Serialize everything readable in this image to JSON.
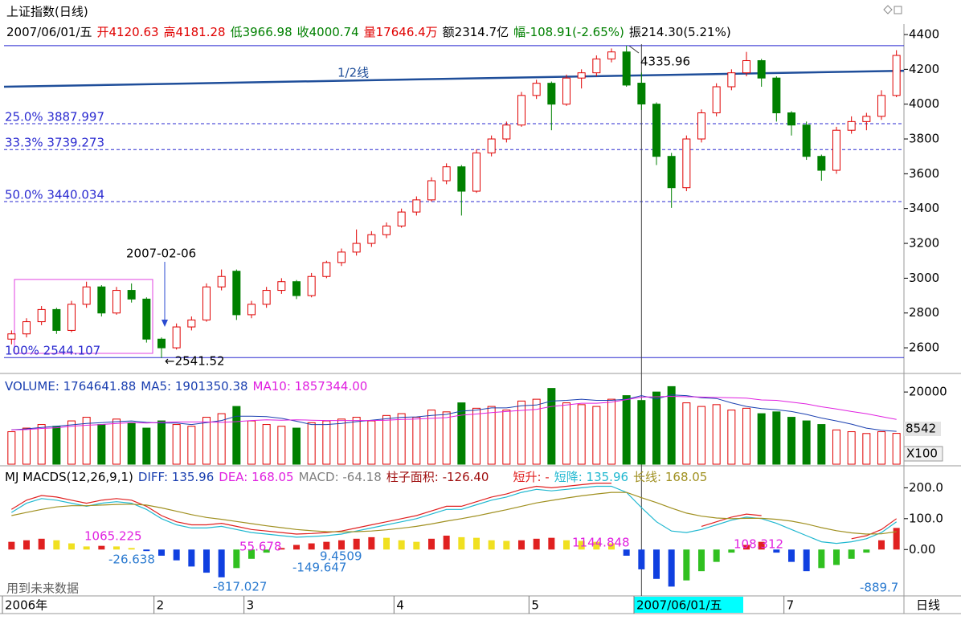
{
  "header": {
    "title": "上证指数(日线)",
    "quote": [
      {
        "text": "2007/06/01/五",
        "color": "#000000"
      },
      {
        "text": "开4120.63",
        "color": "#e00000"
      },
      {
        "text": "高4181.28",
        "color": "#e00000"
      },
      {
        "text": "低3966.98",
        "color": "#008000"
      },
      {
        "text": "收4000.74",
        "color": "#008000"
      },
      {
        "text": "量17646.4万",
        "color": "#e00000"
      },
      {
        "text": "额2314.7亿",
        "color": "#000000"
      },
      {
        "text": "幅-108.91(-2.65%)",
        "color": "#008000"
      },
      {
        "text": "振214.30(5.21%)",
        "color": "#000000"
      }
    ],
    "period": "日线"
  },
  "chart_data": [
    {
      "type": "candlestick",
      "categories": [
        "2006年",
        null,
        null,
        null,
        null,
        null,
        null,
        null,
        null,
        null,
        "2",
        null,
        null,
        null,
        null,
        null,
        "3",
        null,
        null,
        null,
        null,
        null,
        null,
        null,
        null,
        null,
        "4",
        null,
        null,
        null,
        null,
        null,
        null,
        null,
        null,
        "5",
        null,
        null,
        null,
        null,
        null,
        null,
        "2007/06/01/五",
        null,
        null,
        null,
        null,
        null,
        null,
        null,
        null,
        null,
        "7",
        null,
        null,
        null,
        null,
        null,
        null,
        null
      ],
      "open": [
        2650,
        2680,
        2750,
        2820,
        2700,
        2850,
        2950,
        2800,
        2930,
        2880,
        2650,
        2600,
        2720,
        2760,
        2950,
        3040,
        2790,
        2850,
        2930,
        2980,
        2900,
        3010,
        3090,
        3150,
        3200,
        3250,
        3300,
        3380,
        3450,
        3560,
        3640,
        3500,
        3720,
        3800,
        3880,
        4050,
        4120,
        4000,
        4150,
        4180,
        4260,
        4300,
        4120.63,
        4000,
        3700,
        3520,
        3800,
        3950,
        4100,
        4180,
        4250,
        4150,
        3950,
        3880,
        3700,
        3620,
        3850,
        3900,
        3930,
        4050
      ],
      "high": [
        2700,
        2770,
        2840,
        2830,
        2870,
        2980,
        2960,
        2950,
        2970,
        2890,
        2660,
        2740,
        2780,
        2970,
        3050,
        3050,
        2870,
        2950,
        3000,
        2990,
        3030,
        3100,
        3170,
        3280,
        3270,
        3320,
        3400,
        3470,
        3580,
        3660,
        3650,
        3740,
        3820,
        3900,
        4070,
        4140,
        4130,
        4170,
        4200,
        4280,
        4320,
        4335.96,
        4181.28,
        4010,
        3720,
        3820,
        3970,
        4120,
        4200,
        4300,
        4260,
        4160,
        3960,
        3900,
        3710,
        3870,
        3930,
        3950,
        4080,
        4310
      ],
      "low": [
        2620,
        2660,
        2730,
        2680,
        2690,
        2830,
        2780,
        2790,
        2860,
        2630,
        2541.52,
        2590,
        2700,
        2750,
        2930,
        2760,
        2770,
        2830,
        2910,
        2880,
        2890,
        3000,
        3070,
        3130,
        3180,
        3230,
        3290,
        3360,
        3440,
        3540,
        3360,
        3490,
        3700,
        3780,
        3870,
        4030,
        3850,
        3990,
        4090,
        4160,
        4240,
        4100,
        3966.98,
        3650,
        3404,
        3500,
        3780,
        3930,
        4080,
        4160,
        4100,
        3900,
        3820,
        3680,
        3560,
        3600,
        3830,
        3850,
        3910,
        4040
      ],
      "close": [
        2680,
        2750,
        2820,
        2700,
        2850,
        2950,
        2800,
        2930,
        2880,
        2650,
        2600,
        2720,
        2760,
        2950,
        3010,
        2790,
        2850,
        2930,
        2980,
        2900,
        3010,
        3090,
        3150,
        3200,
        3250,
        3300,
        3380,
        3450,
        3560,
        3640,
        3500,
        3720,
        3800,
        3880,
        4050,
        4120,
        4000,
        4150,
        4180,
        4260,
        4300,
        4109.65,
        4000.74,
        3700,
        3520,
        3800,
        3950,
        4100,
        4180,
        4250,
        4150,
        3950,
        3880,
        3700,
        3620,
        3850,
        3900,
        3930,
        4050,
        4280
      ],
      "up_color": "#e00000",
      "down_color": "#008000",
      "ylim": [
        2545,
        4460
      ],
      "yticks": [
        2600,
        2800,
        3000,
        3200,
        3400,
        3600,
        3800,
        4000,
        4200,
        4400
      ],
      "cursor_index": 42,
      "levels": [
        {
          "value": 3887.997,
          "label": "25.0% 3887.997"
        },
        {
          "value": 3739.273,
          "label": "33.3% 3739.273"
        },
        {
          "value": 3440.034,
          "label": "50.0% 3440.034"
        },
        {
          "value": 2544.107,
          "label": "100% 2544.107"
        }
      ],
      "level_color": "#2a2ad0",
      "half_line": {
        "label": "1/2线",
        "values": [
          4100,
          4192
        ],
        "color": "#1f4e9a"
      },
      "annotations": [
        "2007-02-06",
        "4335.96",
        "←2541.52"
      ]
    },
    {
      "type": "bar",
      "title_items": [
        {
          "text": "VOLUME: 1764641.88",
          "color": "#1a3fb0"
        },
        {
          "text": "MA5: 1901350.38",
          "color": "#1a3fb0"
        },
        {
          "text": "MA10: 1857344.00",
          "color": "#e020e0"
        }
      ],
      "values": [
        9000,
        10000,
        11000,
        10500,
        12000,
        13000,
        11000,
        12500,
        11500,
        10000,
        12000,
        11000,
        10500,
        13000,
        14000,
        16000,
        12000,
        11000,
        10500,
        10000,
        11500,
        12000,
        12500,
        13000,
        12000,
        13500,
        14000,
        13000,
        15000,
        14500,
        17000,
        15500,
        16000,
        15000,
        17500,
        18000,
        21000,
        17000,
        16500,
        16000,
        18000,
        19000,
        17646.4,
        20000,
        21500,
        17000,
        16000,
        16500,
        15000,
        15500,
        14000,
        14500,
        13000,
        12000,
        11000,
        9500,
        9000,
        8500,
        9000,
        8542
      ],
      "lines": [
        {
          "color": "#1a3fb0",
          "values": [
            9500,
            9800,
            10200,
            10500,
            10900,
            11300,
            11500,
            11800,
            12000,
            11600,
            11400,
            11400,
            11000,
            11500,
            12100,
            13300,
            13300,
            13200,
            12700,
            11900,
            11000,
            11000,
            11300,
            11800,
            12200,
            12600,
            13000,
            13100,
            13500,
            13800,
            14700,
            15000,
            15600,
            15600,
            16200,
            16400,
            17500,
            17700,
            18000,
            17700,
            17700,
            18000,
            19013.5,
            18100,
            19200,
            19000,
            18400,
            18200,
            17000,
            16000,
            15400,
            15100,
            14600,
            13800,
            12800,
            12000,
            11100,
            10000,
            9400,
            9100
          ]
        },
        {
          "color": "#e020e0",
          "values": [
            9500,
            9600,
            9900,
            10100,
            10500,
            10800,
            11000,
            11300,
            11500,
            11400,
            11600,
            11700,
            11700,
            11700,
            11600,
            11800,
            12100,
            12300,
            12200,
            12300,
            12200,
            12100,
            12100,
            12100,
            12100,
            12200,
            12400,
            12500,
            12700,
            12900,
            13600,
            13900,
            14300,
            14600,
            14900,
            15200,
            16000,
            16400,
            16900,
            16900,
            17200,
            17900,
            18573.44,
            18700,
            18800,
            18700,
            18600,
            18500,
            18400,
            18300,
            17800,
            17700,
            17200,
            16700,
            15900,
            15300,
            14600,
            14000,
            13200,
            12400
          ]
        }
      ],
      "ylim": [
        0,
        24700
      ],
      "yticks": [
        20000
      ],
      "unit_label": "X100"
    },
    {
      "type": "macd",
      "title_items": [
        {
          "text": "MJ  MACDS(12,26,9,1)",
          "color": "#000000"
        },
        {
          "text": "DIFF: 135.96",
          "color": "#1a3fb0"
        },
        {
          "text": "DEA: 168.05",
          "color": "#e020e0"
        },
        {
          "text": "MACD: -64.18",
          "color": "#808080"
        },
        {
          "text": "柱子面积: -126.40",
          "color": "#a01010"
        },
        {
          "text": "短升: -",
          "color": "#e02020"
        },
        {
          "text": "短降: 135.96",
          "color": "#20b8d0"
        },
        {
          "text": "长线: 168.05",
          "color": "#a09020"
        }
      ],
      "values": [
        25,
        30,
        35,
        30,
        20,
        10,
        12,
        10,
        5,
        -5,
        -20,
        -35,
        -55,
        -75,
        -90,
        -60,
        -30,
        -10,
        5,
        15,
        20,
        25,
        30,
        35,
        40,
        38,
        30,
        25,
        35,
        45,
        40,
        38,
        30,
        28,
        30,
        35,
        38,
        30,
        28,
        25,
        20,
        -20,
        -64.18,
        -95,
        -120,
        -100,
        -70,
        -40,
        -10,
        15,
        25,
        -10,
        -40,
        -70,
        -60,
        -50,
        -30,
        -10,
        30,
        70
      ],
      "lines": [
        {
          "color": "#e02020",
          "values": [
            130,
            160,
            175,
            170,
            160,
            150,
            160,
            165,
            160,
            140,
            110,
            90,
            80,
            80,
            85,
            75,
            65,
            60,
            55,
            50,
            52,
            55,
            60,
            70,
            80,
            90,
            100,
            110,
            125,
            140,
            140,
            155,
            170,
            180,
            195,
            205,
            200,
            205,
            210,
            215,
            215,
            null,
            null,
            null,
            null,
            null,
            75,
            90,
            105,
            115,
            110,
            null,
            null,
            null,
            null,
            null,
            35,
            45,
            65,
            100
          ]
        },
        {
          "color": "#20b8d0",
          "values": [
            120,
            150,
            165,
            160,
            150,
            140,
            150,
            155,
            150,
            130,
            100,
            80,
            70,
            70,
            75,
            65,
            55,
            50,
            45,
            40,
            42,
            45,
            50,
            60,
            70,
            80,
            90,
            100,
            115,
            130,
            130,
            145,
            160,
            170,
            185,
            195,
            190,
            195,
            200,
            205,
            205,
            185,
            135.96,
            90,
            60,
            55,
            65,
            80,
            95,
            105,
            100,
            85,
            65,
            45,
            25,
            20,
            25,
            35,
            55,
            90
          ]
        },
        {
          "color": "#a09020",
          "values": [
            110,
            120,
            130,
            138,
            142,
            142,
            144,
            146,
            147,
            144,
            135,
            124,
            113,
            104,
            98,
            91,
            84,
            77,
            71,
            65,
            61,
            58,
            57,
            58,
            60,
            64,
            69,
            75,
            83,
            92,
            100,
            109,
            119,
            129,
            140,
            151,
            159,
            167,
            174,
            180,
            185,
            185,
            168.05,
            152,
            134,
            118,
            108,
            102,
            100,
            101,
            101,
            98,
            92,
            83,
            71,
            61,
            54,
            50,
            51,
            58
          ]
        }
      ],
      "ylim": [
        -145,
        240
      ],
      "yticks": [
        {
          "value": 200,
          "label": "200.0"
        },
        {
          "value": 100,
          "label": "100.0"
        },
        {
          "value": 0,
          "label": "0.00"
        }
      ],
      "annotations": [
        {
          "text": "1065.225",
          "color": "#e020e0"
        },
        {
          "text": "-26.638",
          "color": "#2a7ad0"
        },
        {
          "text": "55.678",
          "color": "#e020e0"
        },
        {
          "text": "9.4509",
          "color": "#2a7ad0"
        },
        {
          "text": "-149.647",
          "color": "#2a7ad0"
        },
        {
          "text": "-817.027",
          "color": "#2a7ad0"
        },
        {
          "text": "1144.848",
          "color": "#e020e0"
        },
        {
          "text": "108.312",
          "color": "#e020e0"
        },
        {
          "text": "-889.7",
          "color": "#2a7ad0"
        }
      ],
      "note": "用到未来数据"
    }
  ]
}
